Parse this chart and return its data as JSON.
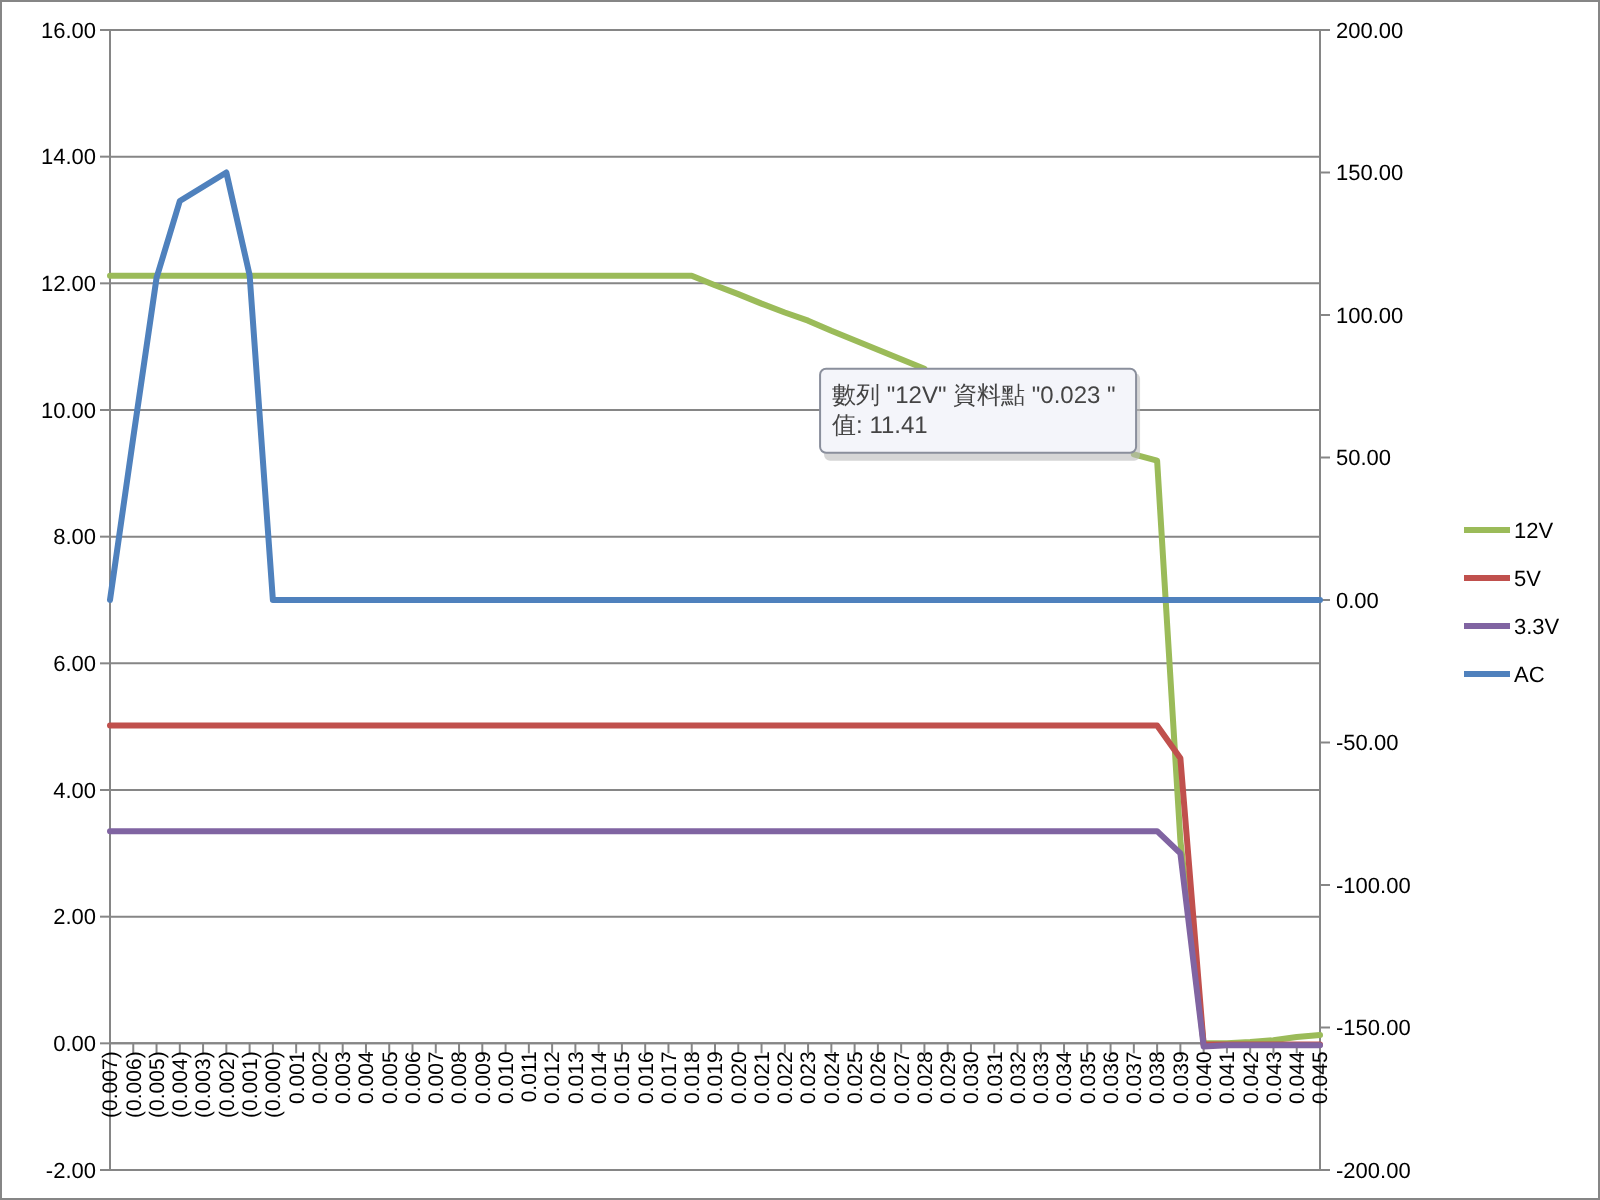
{
  "chart_data": {
    "type": "line",
    "categories": [
      "(0.007)",
      "(0.006)",
      "(0.005)",
      "(0.004)",
      "(0.003)",
      "(0.002)",
      "(0.001)",
      "(0.000)",
      "0.001",
      "0.002",
      "0.003",
      "0.004",
      "0.005",
      "0.006",
      "0.007",
      "0.008",
      "0.009",
      "0.010",
      "0.011",
      "0.012",
      "0.013",
      "0.014",
      "0.015",
      "0.016",
      "0.017",
      "0.018",
      "0.019",
      "0.020",
      "0.021",
      "0.022",
      "0.023",
      "0.024",
      "0.025",
      "0.026",
      "0.027",
      "0.028",
      "0.029",
      "0.030",
      "0.031",
      "0.032",
      "0.033",
      "0.034",
      "0.035",
      "0.036",
      "0.037",
      "0.038",
      "0.039",
      "0.040",
      "0.041",
      "0.042",
      "0.043",
      "0.044",
      "0.045"
    ],
    "series": [
      {
        "name": "12V",
        "color": "#9bbb59",
        "values": [
          12.12,
          12.12,
          12.12,
          12.12,
          12.12,
          12.12,
          12.12,
          12.12,
          12.12,
          12.12,
          12.12,
          12.12,
          12.12,
          12.12,
          12.12,
          12.12,
          12.12,
          12.12,
          12.12,
          12.12,
          12.12,
          12.12,
          12.12,
          12.12,
          12.12,
          12.12,
          11.97,
          11.83,
          11.68,
          11.54,
          11.41,
          11.25,
          11.1,
          10.95,
          10.8,
          10.65,
          null,
          null,
          null,
          null,
          null,
          null,
          null,
          null,
          9.3,
          9.2,
          3.2,
          0.0,
          0.0,
          0.02,
          0.05,
          0.1,
          0.13
        ]
      },
      {
        "name": "5V",
        "color": "#c0504d",
        "values": [
          5.02,
          5.02,
          5.02,
          5.02,
          5.02,
          5.02,
          5.02,
          5.02,
          5.02,
          5.02,
          5.02,
          5.02,
          5.02,
          5.02,
          5.02,
          5.02,
          5.02,
          5.02,
          5.02,
          5.02,
          5.02,
          5.02,
          5.02,
          5.02,
          5.02,
          5.02,
          5.02,
          5.02,
          5.02,
          5.02,
          5.02,
          5.02,
          5.02,
          5.02,
          5.02,
          5.02,
          5.02,
          5.02,
          5.02,
          5.02,
          5.02,
          5.02,
          5.02,
          5.02,
          5.02,
          5.02,
          4.5,
          -0.02,
          -0.02,
          -0.02,
          -0.02,
          -0.02,
          -0.02
        ]
      },
      {
        "name": "3.3V",
        "color": "#8064a2",
        "values": [
          3.35,
          3.35,
          3.35,
          3.35,
          3.35,
          3.35,
          3.35,
          3.35,
          3.35,
          3.35,
          3.35,
          3.35,
          3.35,
          3.35,
          3.35,
          3.35,
          3.35,
          3.35,
          3.35,
          3.35,
          3.35,
          3.35,
          3.35,
          3.35,
          3.35,
          3.35,
          3.35,
          3.35,
          3.35,
          3.35,
          3.35,
          3.35,
          3.35,
          3.35,
          3.35,
          3.35,
          3.35,
          3.35,
          3.35,
          3.35,
          3.35,
          3.35,
          3.35,
          3.35,
          3.35,
          3.35,
          3.0,
          -0.05,
          -0.03,
          -0.03,
          -0.03,
          -0.03,
          -0.03
        ]
      },
      {
        "name": "AC",
        "color": "#4f81bd",
        "axis": "y2",
        "values": [
          0,
          57,
          113,
          140,
          145,
          150,
          114,
          0,
          0,
          0,
          0,
          0,
          0,
          0,
          0,
          0,
          0,
          0,
          0,
          0,
          0,
          0,
          0,
          0,
          0,
          0,
          0,
          0,
          0,
          0,
          0,
          0,
          0,
          0,
          0,
          0,
          0,
          0,
          0,
          0,
          0,
          0,
          0,
          0,
          0,
          0,
          0,
          0,
          0,
          0,
          0,
          0,
          0
        ]
      }
    ],
    "ylim": [
      -2,
      16
    ],
    "yticks": [
      {
        "value": -2,
        "label": "-2.00"
      },
      {
        "value": 0,
        "label": "0.00"
      },
      {
        "value": 2,
        "label": "2.00"
      },
      {
        "value": 4,
        "label": "4.00"
      },
      {
        "value": 6,
        "label": "6.00"
      },
      {
        "value": 8,
        "label": "8.00"
      },
      {
        "value": 10,
        "label": "10.00"
      },
      {
        "value": 12,
        "label": "12.00"
      },
      {
        "value": 14,
        "label": "14.00"
      },
      {
        "value": 16,
        "label": "16.00"
      }
    ],
    "y2lim": [
      -200,
      200
    ],
    "y2ticks": [
      {
        "value": -200,
        "label": "-200.00"
      },
      {
        "value": -150,
        "label": "-150.00"
      },
      {
        "value": -100,
        "label": "-100.00"
      },
      {
        "value": -50,
        "label": "-50.00"
      },
      {
        "value": 0,
        "label": "0.00"
      },
      {
        "value": 50,
        "label": "50.00"
      },
      {
        "value": 100,
        "label": "100.00"
      },
      {
        "value": 150,
        "label": "150.00"
      },
      {
        "value": 200,
        "label": "200.00"
      }
    ],
    "grid": "y",
    "legend": "right",
    "marker": "none",
    "annotations": [
      {
        "text": "數列 \"12V\" 資料點 \"0.023 \"\n值: 11.41",
        "x": "0.023",
        "y": 11.41
      }
    ]
  }
}
